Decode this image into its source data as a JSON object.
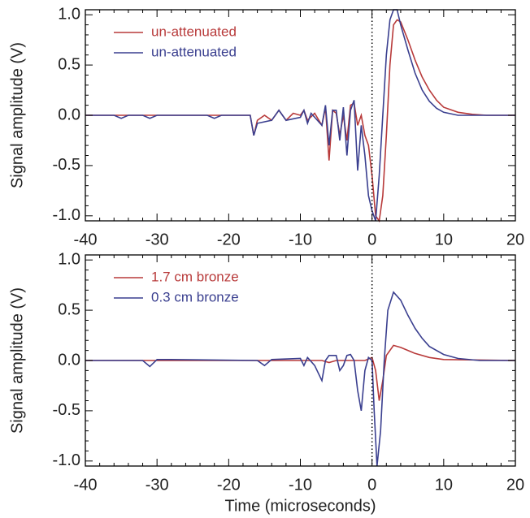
{
  "chart_data": [
    {
      "type": "line",
      "y_label": "Signal amplitude (V)",
      "xlim": [
        -40,
        20
      ],
      "xticks": [
        -40,
        -30,
        -20,
        -10,
        0,
        10,
        20
      ],
      "ylim": [
        -1.05,
        1.05
      ],
      "yticks": [
        {
          "value": -1,
          "label": "-1.0"
        },
        -0.5,
        {
          "value": 0,
          "label": "0.0"
        },
        0.5,
        {
          "value": 1,
          "label": "1.0"
        }
      ],
      "vline": 0,
      "legend": "upper left",
      "series": [
        {
          "name": "un-attenuated",
          "color": "#b83a3a",
          "x": [
            -40,
            -17,
            -16.5,
            -16,
            -15,
            -14,
            -13,
            -12,
            -11,
            -10,
            -9.5,
            -9,
            -8,
            -7,
            -6.5,
            -6,
            -5.5,
            -5,
            -4.5,
            -4,
            -3.5,
            -3,
            -2.5,
            -2,
            -1.5,
            -1,
            -0.5,
            0,
            0.5,
            1,
            1.5,
            2,
            2.5,
            3,
            3.5,
            4,
            5,
            6,
            7,
            8,
            9,
            10,
            12,
            14,
            16,
            20
          ],
          "values": [
            0,
            0,
            -0.2,
            -0.05,
            0,
            -0.05,
            0.05,
            -0.05,
            0.02,
            0,
            0.05,
            -0.05,
            0.02,
            -0.1,
            0.08,
            -0.45,
            0.05,
            0.02,
            -0.2,
            0,
            -0.25,
            0.1,
            0.12,
            -0.1,
            0,
            -0.2,
            -0.3,
            -0.6,
            -1,
            -1.05,
            -0.8,
            -0.2,
            0.5,
            0.9,
            0.95,
            0.93,
            0.75,
            0.55,
            0.38,
            0.25,
            0.15,
            0.08,
            0.03,
            0.01,
            0,
            0
          ]
        },
        {
          "name": "un-attenuated",
          "color": "#3a3f8f",
          "x": [
            -40,
            -36,
            -35,
            -34,
            -32,
            -31,
            -30,
            -23,
            -22,
            -21,
            -17,
            -16.5,
            -16,
            -14,
            -13,
            -12,
            -10,
            -9.5,
            -9,
            -8.5,
            -7,
            -6.5,
            -6,
            -5.5,
            -5,
            -4.5,
            -4,
            -3.5,
            -3,
            -2.5,
            -2,
            -1.5,
            -1,
            -0.5,
            0,
            0.5,
            1,
            1.5,
            2,
            2.5,
            3,
            3.5,
            4,
            5,
            6,
            7,
            8,
            9,
            10,
            12,
            20
          ],
          "values": [
            0,
            0,
            -0.03,
            0,
            0,
            -0.03,
            0,
            0,
            -0.03,
            0,
            0,
            -0.2,
            -0.08,
            -0.05,
            0.05,
            -0.05,
            -0.02,
            0.05,
            -0.08,
            0.02,
            -0.1,
            0.1,
            -0.3,
            0.05,
            0.05,
            -0.25,
            0.08,
            -0.4,
            0.05,
            0.15,
            -0.55,
            -0.1,
            -0.4,
            -0.8,
            -0.95,
            -1.05,
            -0.6,
            0,
            0.6,
            0.95,
            1.05,
            1.05,
            0.9,
            0.65,
            0.42,
            0.25,
            0.14,
            0.07,
            0.03,
            0,
            0
          ]
        }
      ]
    },
    {
      "type": "line",
      "y_label": "Signal amplitude (V)",
      "x_label": "Time (microseconds)",
      "xlim": [
        -40,
        20
      ],
      "xticks": [
        -40,
        -30,
        -20,
        -10,
        0,
        10,
        20
      ],
      "ylim": [
        -1.05,
        1.05
      ],
      "yticks": [
        {
          "value": -1,
          "label": "-1.0"
        },
        -0.5,
        {
          "value": 0,
          "label": "0.0"
        },
        0.5,
        {
          "value": 1,
          "label": "1.0"
        }
      ],
      "vline": 0,
      "legend": "upper left",
      "series": [
        {
          "name": "1.7 cm bronze",
          "color": "#b83a3a",
          "x": [
            -40,
            -7,
            -6,
            -5,
            -1,
            0,
            0.5,
            1,
            1.5,
            2,
            3,
            4,
            5,
            6,
            8,
            10,
            20
          ],
          "values": [
            0,
            0,
            -0.02,
            0,
            0,
            0.03,
            -0.1,
            -0.4,
            -0.2,
            0.05,
            0.15,
            0.13,
            0.1,
            0.07,
            0.03,
            0.01,
            0
          ]
        },
        {
          "name": "0.3 cm bronze",
          "color": "#3a3f8f",
          "x": [
            -40,
            -32,
            -31,
            -30,
            -28,
            -16,
            -15,
            -14,
            -10,
            -9.5,
            -9,
            -8,
            -7,
            -6.5,
            -6,
            -5,
            -4.5,
            -4,
            -3.5,
            -3,
            -2.5,
            -2,
            -1.5,
            -1,
            -0.5,
            0,
            0.3,
            0.7,
            1.2,
            1.7,
            2.2,
            3,
            4,
            5,
            6,
            7,
            8,
            10,
            12,
            15,
            20
          ],
          "values": [
            0,
            0,
            -0.06,
            0.01,
            0.01,
            0,
            -0.05,
            0.01,
            0.02,
            -0.05,
            0.03,
            -0.05,
            -0.2,
            0,
            0.05,
            0.05,
            -0.1,
            -0.05,
            0.05,
            0.06,
            0,
            -0.3,
            -0.5,
            -0.1,
            0.03,
            0,
            -0.5,
            -1.05,
            -0.7,
            0,
            0.5,
            0.68,
            0.6,
            0.45,
            0.32,
            0.22,
            0.14,
            0.06,
            0.02,
            0,
            0
          ]
        }
      ]
    }
  ]
}
